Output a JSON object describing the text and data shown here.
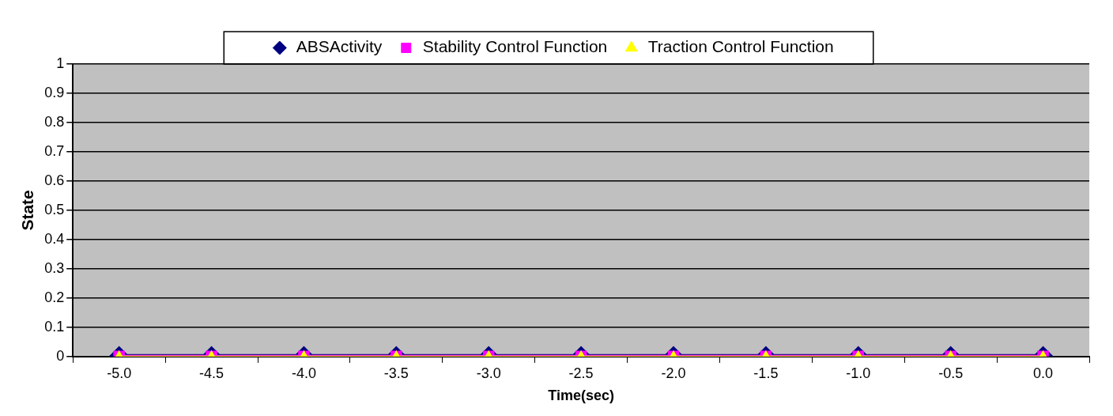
{
  "chart_data": {
    "type": "line",
    "xlabel": "Time(sec)",
    "ylabel": "State",
    "categories": [
      "-5.0",
      "-4.5",
      "-4.0",
      "-3.5",
      "-3.0",
      "-2.5",
      "-2.0",
      "-1.5",
      "-1.0",
      "-0.5",
      "0.0"
    ],
    "series": [
      {
        "name": "ABSActivity",
        "color": "#000080",
        "marker": "diamond",
        "values": [
          0,
          0,
          0,
          0,
          0,
          0,
          0,
          0,
          0,
          0,
          0
        ]
      },
      {
        "name": "Stability Control Function",
        "color": "#ff00ff",
        "marker": "square",
        "values": [
          0,
          0,
          0,
          0,
          0,
          0,
          0,
          0,
          0,
          0,
          0
        ]
      },
      {
        "name": "Traction Control Function",
        "color": "#ffff00",
        "marker": "triangle",
        "values": [
          0,
          0,
          0,
          0,
          0,
          0,
          0,
          0,
          0,
          0,
          0
        ]
      }
    ],
    "ylim": [
      0,
      1
    ],
    "yticks": [
      0,
      0.1,
      0.2,
      0.3,
      0.4,
      0.5,
      0.6,
      0.7,
      0.8,
      0.9,
      1
    ],
    "grid": "y",
    "legend": "top",
    "line_style": "solid"
  }
}
